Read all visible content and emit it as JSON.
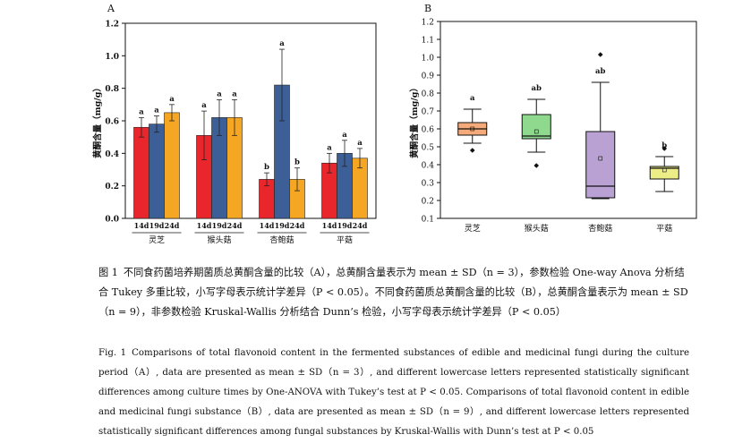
{
  "colors": {
    "bar_14d": "#e8262b",
    "bar_19d": "#3d5f97",
    "bar_24d": "#f5a623",
    "box": [
      "#f4aa7a",
      "#8fd98e",
      "#b9a2d3",
      "#eded88"
    ]
  },
  "chart_data": [
    {
      "type": "bar",
      "panel_label": "A",
      "ylabel": "黄酮含量（mg/g）",
      "ylim": [
        0,
        1.2
      ],
      "yticks": [
        "0.0",
        "0.2",
        "0.4",
        "0.6",
        "0.8",
        "1.0",
        "1.2"
      ],
      "categories": [
        "灵芝",
        "猴头菇",
        "杏鲍菇",
        "平菇"
      ],
      "series_labels": [
        "14d",
        "19d",
        "24d"
      ],
      "series": [
        {
          "name": "14d",
          "values": [
            0.56,
            0.51,
            0.24,
            0.34
          ],
          "errors": [
            0.06,
            0.15,
            0.04,
            0.06
          ],
          "letters": [
            "a",
            "a",
            "b",
            "a"
          ]
        },
        {
          "name": "19d",
          "values": [
            0.58,
            0.62,
            0.82,
            0.4
          ],
          "errors": [
            0.05,
            0.11,
            0.22,
            0.08
          ],
          "letters": [
            "a",
            "a",
            "a",
            "a"
          ]
        },
        {
          "name": "24d",
          "values": [
            0.65,
            0.62,
            0.24,
            0.37
          ],
          "errors": [
            0.05,
            0.11,
            0.07,
            0.06
          ],
          "letters": [
            "a",
            "a",
            "b",
            "a"
          ]
        }
      ]
    },
    {
      "type": "box",
      "panel_label": "B",
      "ylabel": "黄酮含量（mg/g）",
      "ylim": [
        0.1,
        1.2
      ],
      "yticks": [
        "0.1",
        "0.2",
        "0.3",
        "0.4",
        "0.5",
        "0.6",
        "0.7",
        "0.8",
        "0.9",
        "1.0",
        "1.1",
        "1.2"
      ],
      "categories": [
        "灵芝",
        "猴头菇",
        "杏鲍菇",
        "平菇"
      ],
      "boxes": [
        {
          "whisker_low": 0.52,
          "q1": 0.565,
          "median": 0.6,
          "q3": 0.635,
          "whisker_high": 0.71,
          "mean": 0.6,
          "outliers": [
            0.48
          ],
          "letter": "a"
        },
        {
          "whisker_low": 0.47,
          "q1": 0.545,
          "median": 0.56,
          "q3": 0.68,
          "whisker_high": 0.765,
          "mean": 0.585,
          "outliers": [
            0.395
          ],
          "letter": "ab"
        },
        {
          "whisker_low": 0.21,
          "q1": 0.215,
          "median": 0.28,
          "q3": 0.585,
          "whisker_high": 0.86,
          "mean": 0.435,
          "outliers": [
            1.015
          ],
          "letter": "ab"
        },
        {
          "whisker_low": 0.25,
          "q1": 0.32,
          "median": 0.38,
          "q3": 0.39,
          "whisker_high": 0.445,
          "mean": 0.37,
          "outliers": [
            0.49
          ],
          "letter": "b"
        }
      ]
    }
  ],
  "caption_cn": {
    "label": "图 1",
    "text": "不同食药菌培养期菌质总黄酮含量的比较（A），总黄酮含量表示为 mean ± SD（n = 3），参数检验 One-way Anova 分析结合 Tukey 多重比较，小写字母表示统计学差异（P < 0.05）。不同食药菌质总黄酮含量的比较（B），总黄酮含量表示为 mean ± SD（n = 9），非参数检验 Kruskal-Wallis 分析结合 Dunn’s 检验，小写字母表示统计学差异（P < 0.05）"
  },
  "caption_en": {
    "label": "Fig. 1",
    "text": "Comparisons of total flavonoid content in the fermented substances of edible and medicinal fungi during the culture period（A）, data are presented as mean ± SD（n = 3）, and different lowercase letters represented statistically significant differences among culture times by One-ANOVA with Tukey’s test at P < 0.05. Comparisons of total flavonoid content in edible and medicinal fungi substance（B）, data are presented as mean ± SD（n = 9）, and different lowercase letters represented statistically significant differences among fungal substances by Kruskal-Wallis with Dunn’s test at P < 0.05"
  }
}
